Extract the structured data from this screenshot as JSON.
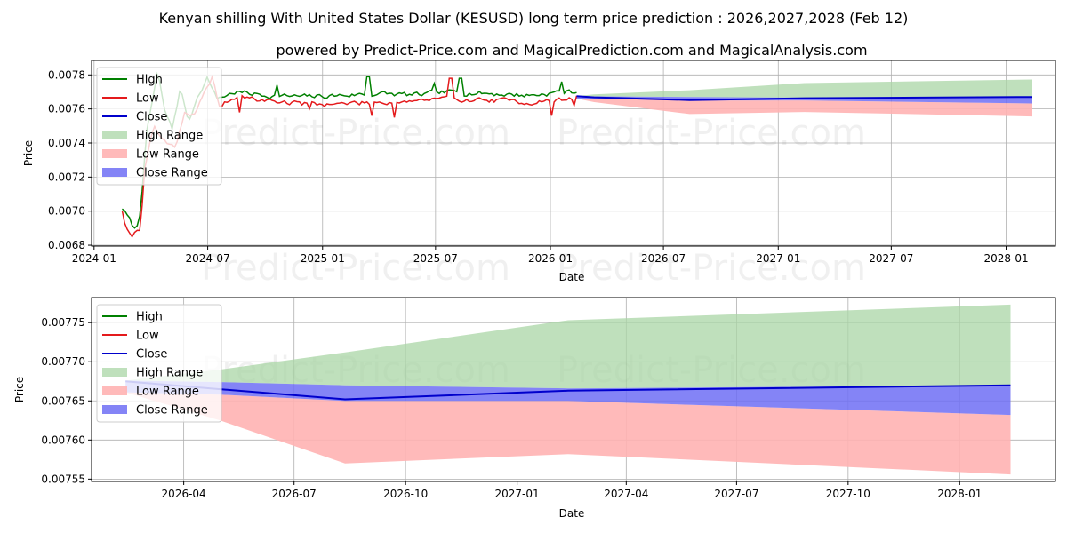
{
  "title": "Kenyan shilling With United States Dollar (KESUSD) long term price prediction : 2026,2027,2028 (Feb 12)",
  "subtitle": "powered by Predict-Price.com and MagicalPrediction.com and MagicalAnalysis.com",
  "watermark": "Predict-Price.com",
  "colors": {
    "high": "#008000",
    "low": "#e41a1c",
    "close": "#0000cc",
    "high_range": "#a9d6a5",
    "low_range": "#ffb3b3",
    "close_range": "#6f6ff5"
  },
  "chart_data": [
    {
      "type": "line",
      "name": "full-history",
      "xlabel": "Date",
      "ylabel": "Price",
      "xlim": [
        "2023-12-28",
        "2028-03-20"
      ],
      "ylim": [
        0.006795,
        0.007885
      ],
      "xticks": [
        {
          "date": "2024-01-01",
          "label": "2024-01"
        },
        {
          "date": "2024-07-01",
          "label": "2024-07"
        },
        {
          "date": "2025-01-01",
          "label": "2025-01"
        },
        {
          "date": "2025-07-01",
          "label": "2025-07"
        },
        {
          "date": "2026-01-01",
          "label": "2026-01"
        },
        {
          "date": "2026-07-01",
          "label": "2026-07"
        },
        {
          "date": "2027-01-01",
          "label": "2027-01"
        },
        {
          "date": "2027-07-01",
          "label": "2027-07"
        },
        {
          "date": "2028-01-01",
          "label": "2028-01"
        }
      ],
      "yticks": [
        {
          "v": 0.0068,
          "label": "0.0068"
        },
        {
          "v": 0.007,
          "label": "0.0070"
        },
        {
          "v": 0.0072,
          "label": "0.0072"
        },
        {
          "v": 0.0074,
          "label": "0.0074"
        },
        {
          "v": 0.0076,
          "label": "0.0076"
        },
        {
          "v": 0.0078,
          "label": "0.0078"
        }
      ],
      "grid": true,
      "legend": {
        "placement": "top-left",
        "entries": [
          {
            "label": "High",
            "kind": "line",
            "series": "high"
          },
          {
            "label": "Low",
            "kind": "line",
            "series": "low"
          },
          {
            "label": "Close",
            "kind": "line",
            "series": "close"
          },
          {
            "label": "High Range",
            "kind": "patch",
            "series": "high_range"
          },
          {
            "label": "Low Range",
            "kind": "patch",
            "series": "low_range"
          },
          {
            "label": "Close Range",
            "kind": "patch",
            "series": "close_range"
          }
        ]
      },
      "history": {
        "high": {
          "anchors": [
            [
              "2024-02-15",
              0.00702
            ],
            [
              "2024-02-25",
              0.00696
            ],
            [
              "2024-03-08",
              0.00688
            ],
            [
              "2024-03-15",
              0.007
            ],
            [
              "2024-03-25",
              0.00745
            ],
            [
              "2024-04-05",
              0.00768
            ],
            [
              "2024-04-12",
              0.00782
            ],
            [
              "2024-04-22",
              0.0076
            ],
            [
              "2024-05-05",
              0.00748
            ],
            [
              "2024-05-18",
              0.00772
            ],
            [
              "2024-06-01",
              0.00752
            ],
            [
              "2024-06-15",
              0.00768
            ],
            [
              "2024-07-01",
              0.00779
            ],
            [
              "2024-07-15",
              0.00766
            ],
            [
              "2024-08-15",
              0.0077
            ],
            [
              "2024-10-01",
              0.00768
            ],
            [
              "2024-12-01",
              0.00767
            ],
            [
              "2025-02-01",
              0.00768
            ],
            [
              "2025-04-01",
              0.00769
            ],
            [
              "2025-06-01",
              0.00768
            ],
            [
              "2025-08-01",
              0.0077
            ],
            [
              "2025-10-01",
              0.00769
            ],
            [
              "2025-12-01",
              0.00768
            ],
            [
              "2026-01-15",
              0.0077
            ],
            [
              "2026-02-12",
              0.0077
            ]
          ],
          "noise": 1.3e-05,
          "seed": 7,
          "spikes": [
            [
              "2024-10-20",
              0.00774
            ],
            [
              "2025-03-15",
              0.00779
            ],
            [
              "2025-06-28",
              0.00775
            ],
            [
              "2025-08-10",
              0.00778
            ],
            [
              "2026-01-20",
              0.00776
            ]
          ]
        },
        "low": {
          "anchors": [
            [
              "2024-02-15",
              0.00701
            ],
            [
              "2024-02-22",
              0.0069
            ],
            [
              "2024-03-01",
              0.00686
            ],
            [
              "2024-03-15",
              0.0069
            ],
            [
              "2024-03-22",
              0.00725
            ],
            [
              "2024-04-05",
              0.0075
            ],
            [
              "2024-04-20",
              0.00742
            ],
            [
              "2024-05-10",
              0.00738
            ],
            [
              "2024-05-25",
              0.00758
            ],
            [
              "2024-06-10",
              0.00756
            ],
            [
              "2024-06-25",
              0.00768
            ],
            [
              "2024-07-08",
              0.00778
            ],
            [
              "2024-07-20",
              0.00762
            ],
            [
              "2024-08-15",
              0.00767
            ],
            [
              "2024-10-01",
              0.00765
            ],
            [
              "2024-12-01",
              0.00763
            ],
            [
              "2025-02-01",
              0.00763
            ],
            [
              "2025-04-01",
              0.00764
            ],
            [
              "2025-06-01",
              0.00765
            ],
            [
              "2025-08-01",
              0.00766
            ],
            [
              "2025-10-01",
              0.00765
            ],
            [
              "2025-12-01",
              0.00764
            ],
            [
              "2026-01-15",
              0.00765
            ],
            [
              "2026-02-12",
              0.00767
            ]
          ],
          "noise": 1.3e-05,
          "seed": 19,
          "spikes": [
            [
              "2024-08-20",
              0.00758
            ],
            [
              "2024-12-10",
              0.0076
            ],
            [
              "2025-03-20",
              0.00756
            ],
            [
              "2025-04-25",
              0.00755
            ],
            [
              "2025-07-25",
              0.00778
            ],
            [
              "2026-01-02",
              0.00756
            ],
            [
              "2026-02-08",
              0.00762
            ]
          ]
        }
      },
      "prediction": {
        "dates": [
          "2026-02-12",
          "2026-03-12",
          "2026-08-12",
          "2027-02-12",
          "2028-02-12"
        ],
        "close": [
          0.007675,
          0.007668,
          0.007652,
          0.007663,
          0.00767
        ],
        "close_upper": [
          0.007676,
          0.007674,
          0.00767,
          0.007666,
          0.00767
        ],
        "close_lower": [
          0.007661,
          0.00766,
          0.00765,
          0.00765,
          0.007632
        ],
        "high_upper": [
          0.007676,
          0.007686,
          0.00771,
          0.007752,
          0.007773
        ],
        "low_lower": [
          0.007661,
          0.00764,
          0.00757,
          0.007582,
          0.007556
        ]
      }
    },
    {
      "type": "line",
      "name": "prediction-zoom",
      "xlabel": "Date",
      "ylabel": "Price",
      "xlim": [
        "2026-01-15",
        "2028-03-20"
      ],
      "ylim": [
        0.007547,
        0.007782
      ],
      "xticks": [
        {
          "date": "2026-04-01",
          "label": "2026-04"
        },
        {
          "date": "2026-07-01",
          "label": "2026-07"
        },
        {
          "date": "2026-10-01",
          "label": "2026-10"
        },
        {
          "date": "2027-01-01",
          "label": "2027-01"
        },
        {
          "date": "2027-04-01",
          "label": "2027-04"
        },
        {
          "date": "2027-07-01",
          "label": "2027-07"
        },
        {
          "date": "2027-10-01",
          "label": "2027-10"
        },
        {
          "date": "2028-01-01",
          "label": "2028-01"
        }
      ],
      "yticks": [
        {
          "v": 0.00755,
          "label": "0.00755"
        },
        {
          "v": 0.0076,
          "label": "0.00760"
        },
        {
          "v": 0.00765,
          "label": "0.00765"
        },
        {
          "v": 0.0077,
          "label": "0.00770"
        },
        {
          "v": 0.00775,
          "label": "0.00775"
        }
      ],
      "grid": true,
      "legend": {
        "placement": "top-left",
        "entries": [
          {
            "label": "High",
            "kind": "line",
            "series": "high"
          },
          {
            "label": "Low",
            "kind": "line",
            "series": "low"
          },
          {
            "label": "Close",
            "kind": "line",
            "series": "close"
          },
          {
            "label": "High Range",
            "kind": "patch",
            "series": "high_range"
          },
          {
            "label": "Low Range",
            "kind": "patch",
            "series": "low_range"
          },
          {
            "label": "Close Range",
            "kind": "patch",
            "series": "close_range"
          }
        ]
      },
      "prediction": {
        "dates": [
          "2026-02-12",
          "2026-05-01",
          "2026-08-12",
          "2027-02-12",
          "2028-02-12"
        ],
        "close": [
          0.007675,
          0.007665,
          0.007652,
          0.007663,
          0.00767
        ],
        "close_upper": [
          0.007676,
          0.007674,
          0.00767,
          0.007666,
          0.00767
        ],
        "close_lower": [
          0.007661,
          0.007658,
          0.00765,
          0.00765,
          0.007632
        ],
        "high_upper": [
          0.007676,
          0.00769,
          0.007712,
          0.007753,
          0.007773
        ],
        "low_lower": [
          0.007661,
          0.007625,
          0.00757,
          0.007582,
          0.007556
        ]
      }
    }
  ]
}
